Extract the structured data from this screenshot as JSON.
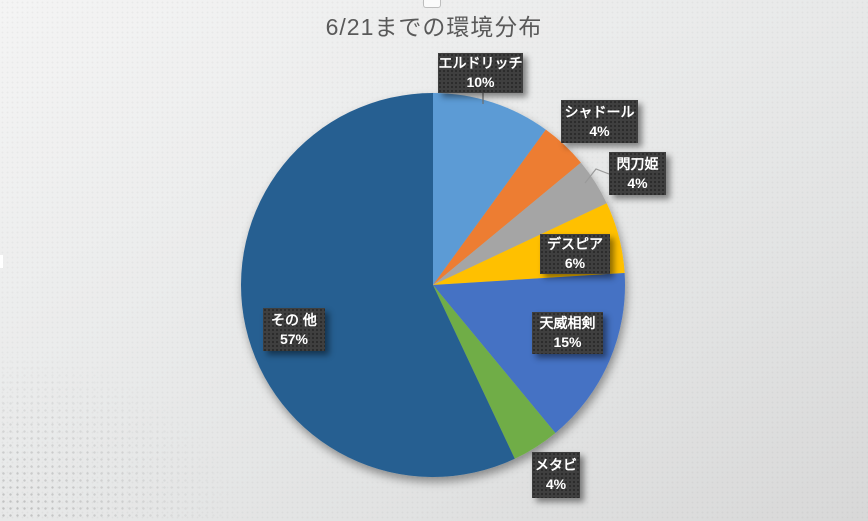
{
  "chart_data": {
    "type": "pie",
    "title": "6/21までの環境分布",
    "categories": [
      "エルドリッチ",
      "シャドール",
      "閃刀姫",
      "デスピア",
      "天威相剣",
      "メタビ",
      "その 他"
    ],
    "values": [
      10,
      4,
      4,
      6,
      15,
      4,
      57
    ],
    "percent_labels": [
      "10%",
      "4%",
      "4%",
      "6%",
      "15%",
      "4%",
      "57%"
    ],
    "colors": [
      "#5B9BD5",
      "#ED7D31",
      "#A5A5A5",
      "#FFC000",
      "#4472C4",
      "#70AD47",
      "#255E91"
    ],
    "start_angle_deg": 0,
    "direction": "clockwise",
    "legend": "none",
    "label_style": "dark callout boxes with category name and percent"
  },
  "colors": {
    "background_top": "#F4F4F4",
    "background_bottom": "#D8D8D8",
    "title_text": "#595959",
    "callout_bg": "#3F3F3F",
    "callout_text": "#FFFFFF",
    "leader_line": "#8C8C8C"
  }
}
